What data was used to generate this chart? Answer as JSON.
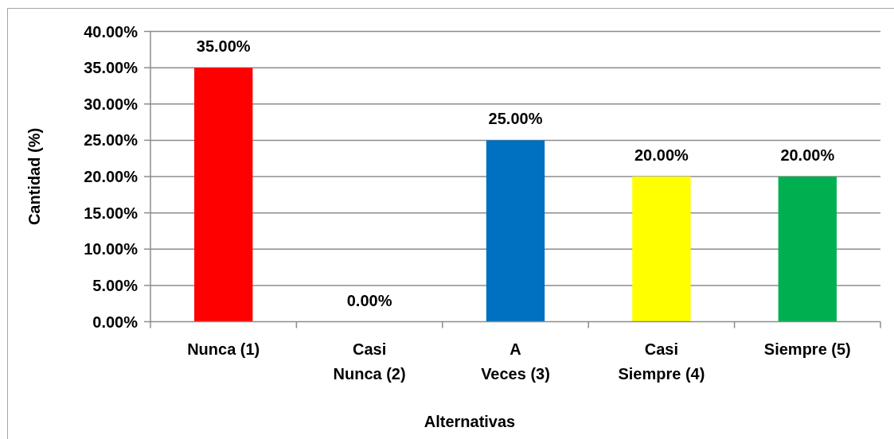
{
  "chart_data": {
    "type": "bar",
    "xlabel": "Alternativas",
    "ylabel": "Cantidad (%)",
    "categories": [
      "Nunca (1)",
      "Casi Nunca (2)",
      "A Veces (3)",
      "Casi Siempre (4)",
      "Siempre (5)"
    ],
    "values": [
      35,
      0,
      25,
      20,
      20
    ],
    "colors": [
      "#ff0000",
      null,
      "#0070c0",
      "#ffff00",
      "#00b050"
    ],
    "value_labels": [
      "35.00%",
      "0.00%",
      "25.00%",
      "20.00%",
      "20.00%"
    ],
    "ylim": [
      0,
      40
    ],
    "yticks": [
      {
        "value": 0,
        "label": "0.00%"
      },
      {
        "value": 5,
        "label": "5.00%"
      },
      {
        "value": 10,
        "label": "10.00%"
      },
      {
        "value": 15,
        "label": "15.00%"
      },
      {
        "value": 20,
        "label": "20.00%"
      },
      {
        "value": 25,
        "label": "25.00%"
      },
      {
        "value": 30,
        "label": "30.00%"
      },
      {
        "value": 35,
        "label": "35.00%"
      },
      {
        "value": 40,
        "label": "40.00%"
      }
    ],
    "grid": "y"
  }
}
